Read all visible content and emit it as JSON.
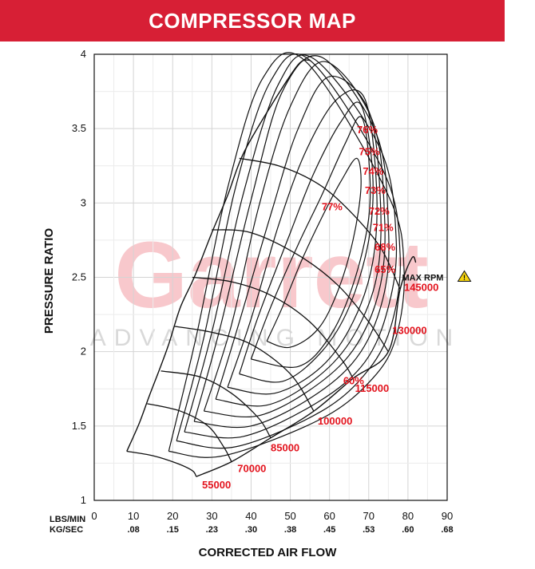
{
  "header": {
    "title": "COMPRESSOR MAP"
  },
  "watermark": {
    "brand": "Garrett",
    "tagline": "ADVANCING MOTION"
  },
  "chart_data": {
    "type": "line",
    "title": "COMPRESSOR MAP",
    "xlabel": "CORRECTED AIR FLOW",
    "ylabel": "PRESSURE RATIO",
    "xlim": [
      0,
      90
    ],
    "ylim": [
      1,
      4
    ],
    "grid": true,
    "x_ticks": [
      0,
      10,
      20,
      30,
      40,
      50,
      60,
      70,
      80,
      90
    ],
    "x_tick_secondary": [
      "",
      ".08",
      ".15",
      ".23",
      ".30",
      ".38",
      ".45",
      ".53",
      ".60",
      ".68"
    ],
    "y_ticks": [
      1,
      1.5,
      2,
      2.5,
      3,
      3.5,
      4
    ],
    "x_unit_label_primary": "LBS/MIN",
    "x_unit_label_secondary": "KG/SEC",
    "surge_line": [
      [
        8.3,
        1.33
      ],
      [
        11.5,
        1.52
      ],
      [
        14,
        1.7
      ],
      [
        16.5,
        1.87
      ],
      [
        19,
        2.05
      ],
      [
        22,
        2.3
      ],
      [
        25.5,
        2.5
      ],
      [
        30,
        2.8
      ],
      [
        34,
        3.05
      ],
      [
        38,
        3.33
      ],
      [
        45,
        3.65
      ],
      [
        52,
        3.93
      ],
      [
        55,
        3.96
      ]
    ],
    "speed_lines": [
      {
        "name": "55000",
        "points": [
          [
            8.3,
            1.33
          ],
          [
            15,
            1.3
          ],
          [
            21,
            1.25
          ],
          [
            25,
            1.2
          ],
          [
            26,
            1.16
          ]
        ]
      },
      {
        "name": "70000",
        "points": [
          [
            13.5,
            1.65
          ],
          [
            22,
            1.6
          ],
          [
            29,
            1.5
          ],
          [
            33,
            1.36
          ],
          [
            35,
            1.26
          ]
        ]
      },
      {
        "name": "85000",
        "points": [
          [
            17,
            1.87
          ],
          [
            27,
            1.83
          ],
          [
            35,
            1.72
          ],
          [
            42,
            1.55
          ],
          [
            45,
            1.42
          ]
        ]
      },
      {
        "name": "100000",
        "points": [
          [
            20.5,
            2.17
          ],
          [
            30,
            2.13
          ],
          [
            40,
            2.05
          ],
          [
            50,
            1.85
          ],
          [
            56,
            1.6
          ]
        ]
      },
      {
        "name": "115000",
        "points": [
          [
            25,
            2.5
          ],
          [
            35,
            2.47
          ],
          [
            45,
            2.38
          ],
          [
            55,
            2.2
          ],
          [
            63,
            1.95
          ],
          [
            66,
            1.82
          ]
        ]
      },
      {
        "name": "130000",
        "points": [
          [
            30,
            2.82
          ],
          [
            40,
            2.8
          ],
          [
            52,
            2.65
          ],
          [
            62,
            2.45
          ],
          [
            70,
            2.2
          ],
          [
            75,
            2.0
          ]
        ]
      },
      {
        "name": "145000",
        "points": [
          [
            37,
            3.3
          ],
          [
            47,
            3.25
          ],
          [
            57,
            3.13
          ],
          [
            65,
            2.95
          ],
          [
            73,
            2.7
          ],
          [
            78,
            2.42
          ]
        ]
      }
    ],
    "choke_line": [
      [
        26,
        1.16
      ],
      [
        35,
        1.26
      ],
      [
        45,
        1.42
      ],
      [
        56,
        1.6
      ],
      [
        66,
        1.82
      ],
      [
        75,
        2.0
      ],
      [
        78,
        2.42
      ],
      [
        81,
        2.63
      ],
      [
        82,
        2.6
      ]
    ],
    "speed_labels": [
      {
        "text": "55000",
        "x": 27.5,
        "y": 1.08
      },
      {
        "text": "70000",
        "x": 36.5,
        "y": 1.19
      },
      {
        "text": "85000",
        "x": 45,
        "y": 1.33
      },
      {
        "text": "100000",
        "x": 57,
        "y": 1.51
      },
      {
        "text": "115000",
        "x": 66.5,
        "y": 1.73
      },
      {
        "text": "130000",
        "x": 76,
        "y": 2.12
      },
      {
        "text": "145000",
        "x": 79,
        "y": 2.41
      }
    ],
    "max_rpm_label": {
      "text": "MAX RPM",
      "x": 78.5,
      "y": 2.5
    },
    "efficiency_labels": [
      {
        "text": "76%",
        "x": 67,
        "y": 3.47
      },
      {
        "text": "75%",
        "x": 67.5,
        "y": 3.32
      },
      {
        "text": "74%",
        "x": 68.5,
        "y": 3.19
      },
      {
        "text": "73%",
        "x": 69,
        "y": 3.06
      },
      {
        "text": "72%",
        "x": 70,
        "y": 2.92
      },
      {
        "text": "71%",
        "x": 71,
        "y": 2.81
      },
      {
        "text": "68%",
        "x": 71.5,
        "y": 2.68
      },
      {
        "text": "65%",
        "x": 71.5,
        "y": 2.53
      },
      {
        "text": "77%",
        "x": 58,
        "y": 2.95
      },
      {
        "text": "60%",
        "x": 63.5,
        "y": 1.78
      }
    ],
    "efficiency_islands": [
      {
        "name": "77%",
        "points": [
          [
            44,
            2.07
          ],
          [
            48,
            2.3
          ],
          [
            53,
            2.62
          ],
          [
            58,
            2.9
          ],
          [
            63,
            3.15
          ],
          [
            67,
            3.3
          ],
          [
            68,
            3.1
          ],
          [
            66,
            2.75
          ],
          [
            62,
            2.4
          ],
          [
            57,
            2.15
          ],
          [
            50,
            2.03
          ],
          [
            44,
            2.07
          ]
        ]
      },
      {
        "name": "76%",
        "points": [
          [
            40,
            1.95
          ],
          [
            45,
            2.3
          ],
          [
            52,
            2.72
          ],
          [
            58,
            3.05
          ],
          [
            64,
            3.4
          ],
          [
            68,
            3.58
          ],
          [
            70,
            3.3
          ],
          [
            70,
            2.9
          ],
          [
            66,
            2.45
          ],
          [
            60,
            2.1
          ],
          [
            52,
            1.9
          ],
          [
            40,
            1.95
          ]
        ]
      },
      {
        "name": "75%",
        "points": [
          [
            37,
            1.85
          ],
          [
            42,
            2.25
          ],
          [
            50,
            2.8
          ],
          [
            56,
            3.2
          ],
          [
            63,
            3.55
          ],
          [
            68,
            3.66
          ],
          [
            71,
            3.2
          ],
          [
            70,
            2.75
          ],
          [
            65,
            2.3
          ],
          [
            58,
            2.0
          ],
          [
            48,
            1.8
          ],
          [
            37,
            1.85
          ]
        ]
      },
      {
        "name": "74%",
        "points": [
          [
            34,
            1.76
          ],
          [
            40,
            2.22
          ],
          [
            47,
            2.85
          ],
          [
            54,
            3.35
          ],
          [
            62,
            3.7
          ],
          [
            69,
            3.7
          ],
          [
            72,
            3.1
          ],
          [
            71,
            2.6
          ],
          [
            66,
            2.2
          ],
          [
            58,
            1.9
          ],
          [
            46,
            1.72
          ],
          [
            34,
            1.76
          ]
        ]
      },
      {
        "name": "73%",
        "points": [
          [
            31,
            1.68
          ],
          [
            37,
            2.2
          ],
          [
            45,
            2.92
          ],
          [
            52,
            3.5
          ],
          [
            60,
            3.85
          ],
          [
            70,
            3.62
          ],
          [
            73,
            3.0
          ],
          [
            72,
            2.5
          ],
          [
            66,
            2.1
          ],
          [
            57,
            1.83
          ],
          [
            44,
            1.64
          ],
          [
            31,
            1.68
          ]
        ]
      },
      {
        "name": "72%",
        "points": [
          [
            28,
            1.6
          ],
          [
            35,
            2.18
          ],
          [
            42,
            2.98
          ],
          [
            50,
            3.65
          ],
          [
            59,
            3.95
          ],
          [
            71,
            3.55
          ],
          [
            74,
            2.93
          ],
          [
            73,
            2.45
          ],
          [
            67,
            2.05
          ],
          [
            57,
            1.78
          ],
          [
            42,
            1.57
          ],
          [
            28,
            1.6
          ]
        ]
      },
      {
        "name": "71%",
        "points": [
          [
            25.5,
            1.53
          ],
          [
            32,
            2.15
          ],
          [
            40,
            3.02
          ],
          [
            48,
            3.75
          ],
          [
            58,
            3.98
          ],
          [
            72,
            3.46
          ],
          [
            75,
            2.85
          ],
          [
            74,
            2.4
          ],
          [
            68,
            2.0
          ],
          [
            57,
            1.72
          ],
          [
            40,
            1.5
          ],
          [
            25.5,
            1.53
          ]
        ]
      },
      {
        "name": "68%",
        "points": [
          [
            23,
            1.46
          ],
          [
            30,
            2.13
          ],
          [
            38,
            3.06
          ],
          [
            47,
            3.8
          ],
          [
            56,
            3.97
          ],
          [
            73,
            3.36
          ],
          [
            77,
            2.75
          ],
          [
            75,
            2.3
          ],
          [
            69,
            1.93
          ],
          [
            57,
            1.66
          ],
          [
            38,
            1.43
          ],
          [
            23,
            1.46
          ]
        ]
      },
      {
        "name": "65%",
        "points": [
          [
            21,
            1.4
          ],
          [
            28,
            2.1
          ],
          [
            36,
            3.1
          ],
          [
            45,
            3.82
          ],
          [
            55,
            3.96
          ],
          [
            74,
            3.2
          ],
          [
            78,
            2.65
          ],
          [
            76,
            2.2
          ],
          [
            70,
            1.88
          ],
          [
            58,
            1.6
          ],
          [
            36,
            1.36
          ],
          [
            21,
            1.4
          ]
        ]
      },
      {
        "name": "60%",
        "points": [
          [
            19,
            1.33
          ],
          [
            26,
            2.1
          ],
          [
            34,
            3.1
          ],
          [
            43,
            3.84
          ],
          [
            54,
            3.95
          ],
          [
            75,
            3.05
          ],
          [
            79,
            2.55
          ],
          [
            77,
            2.1
          ],
          [
            71,
            1.82
          ],
          [
            58,
            1.55
          ],
          [
            33,
            1.3
          ],
          [
            19,
            1.33
          ]
        ]
      }
    ]
  }
}
